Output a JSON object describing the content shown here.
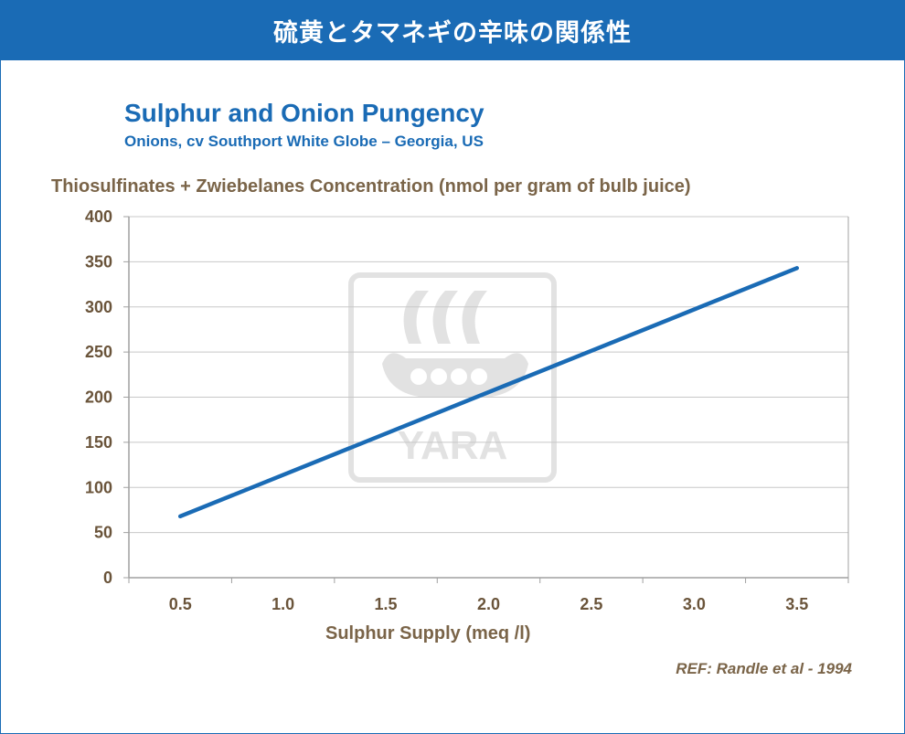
{
  "header": {
    "title": "硫黄とタマネギの辛味の関係性"
  },
  "watermark": {
    "text": "YARA",
    "color": "#b0b0b0"
  },
  "colors": {
    "brand": "#1a6bb5",
    "axis_text": "#7a6448",
    "grid": "#c8c8c8"
  },
  "reference": "REF: Randle et al - 1994",
  "chart_data": {
    "type": "line",
    "title": "Sulphur and Onion Pungency",
    "subtitle": "Onions, cv Southport White Globe – Georgia, US",
    "xlabel": "Sulphur Supply (meq /l)",
    "ylabel": "Thiosulfinates + Zwiebelanes Concentration (nmol per gram of bulb juice)",
    "x_ticks": [
      "0.5",
      "1.0",
      "1.5",
      "2.0",
      "2.5",
      "3.0",
      "3.5"
    ],
    "y_ticks": [
      "0",
      "50",
      "100",
      "150",
      "200",
      "250",
      "300",
      "350",
      "400"
    ],
    "xlim": [
      0.25,
      3.75
    ],
    "ylim": [
      0,
      400
    ],
    "grid": true,
    "series": [
      {
        "color": "#1a6bb5",
        "x": [
          0.5,
          3.5
        ],
        "y": [
          68,
          343
        ]
      }
    ]
  }
}
